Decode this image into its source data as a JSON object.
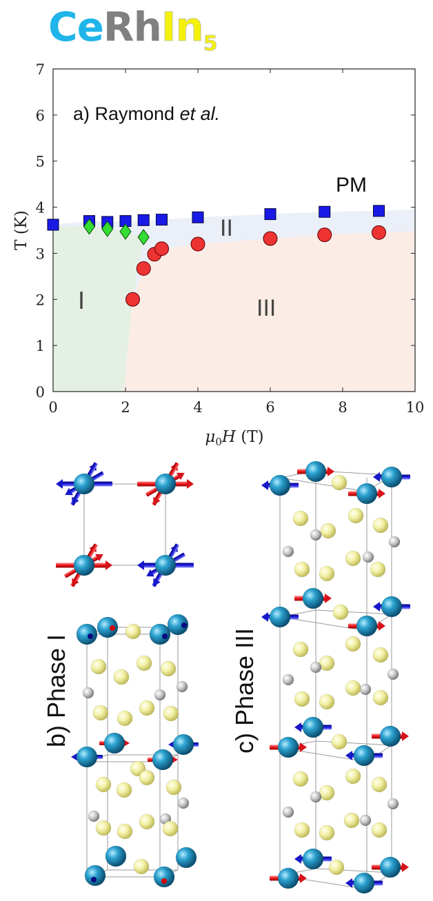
{
  "title": {
    "element1": "Ce",
    "element2": "Rh",
    "element3": "In",
    "subscript": "5"
  },
  "chart_data": {
    "type": "scatter",
    "panel_label": "a) Raymond",
    "panel_label_italic": "et al.",
    "xlabel_prefix": "μ",
    "xlabel_sub": "0",
    "xlabel_main": "H",
    "xlabel_unit": "(T)",
    "ylabel": "T (K)",
    "xlim": [
      0,
      10
    ],
    "ylim": [
      0,
      7
    ],
    "xticks": [
      0,
      2,
      4,
      6,
      8,
      10
    ],
    "yticks": [
      0,
      1,
      2,
      3,
      4,
      5,
      6,
      7
    ],
    "region_labels": {
      "pm": "PM",
      "phase1": "I",
      "phase2": "II",
      "phase3": "III"
    },
    "series": [
      {
        "marker": "square",
        "color": "#1a1ae6",
        "x": [
          0,
          1,
          1.5,
          2,
          2.5,
          3,
          4,
          6,
          7.5,
          9
        ],
        "y": [
          3.62,
          3.7,
          3.68,
          3.7,
          3.72,
          3.73,
          3.78,
          3.85,
          3.9,
          3.92
        ]
      },
      {
        "marker": "diamond",
        "color": "#33dd33",
        "x": [
          1,
          1.5,
          2,
          2.5
        ],
        "y": [
          3.58,
          3.53,
          3.47,
          3.35
        ]
      },
      {
        "marker": "circle",
        "color": "#ee3333",
        "x": [
          2.2,
          2.5,
          2.8,
          3,
          4,
          6,
          7.5,
          9
        ],
        "y": [
          2,
          2.67,
          2.98,
          3.1,
          3.2,
          3.32,
          3.4,
          3.45
        ]
      }
    ]
  },
  "panels": {
    "phase1_label": "b) Phase I",
    "phase3_label": "c) Phase III"
  }
}
